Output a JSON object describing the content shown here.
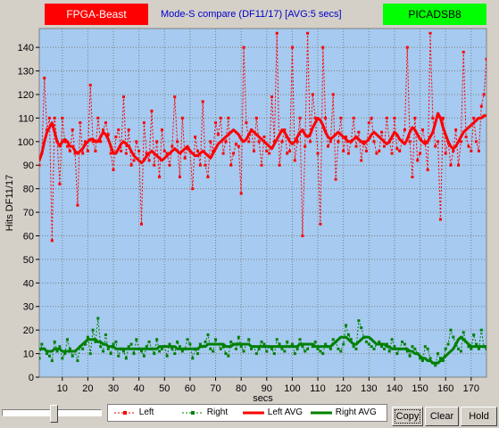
{
  "header": {
    "left_badge": "FPGA-Beast",
    "right_badge": "PICADSB8",
    "left_color": "#ff0000",
    "right_color": "#00ff00"
  },
  "chart_data": {
    "type": "line",
    "title": "Mode-S compare (DF11/17) [AVG:5 secs]",
    "xlabel": "secs",
    "ylabel": "Hits DF11/17",
    "xlim": [
      1,
      176
    ],
    "ylim": [
      0,
      148
    ],
    "x_ticks": [
      10,
      20,
      30,
      40,
      50,
      60,
      70,
      80,
      90,
      100,
      110,
      120,
      130,
      140,
      150,
      160,
      170
    ],
    "y_ticks": [
      0,
      10,
      20,
      30,
      40,
      50,
      60,
      70,
      80,
      90,
      100,
      110,
      120,
      130,
      140
    ],
    "grid": true,
    "background": "#a6caf0",
    "series": [
      {
        "name": "Left",
        "color": "#ff0000",
        "style": "dotted-markers",
        "values": [
          90,
          95,
          127,
          105,
          110,
          58,
          110,
          100,
          82,
          110,
          100,
          98,
          96,
          105,
          95,
          73,
          108,
          95,
          100,
          96,
          124,
          100,
          96,
          110,
          100,
          105,
          108,
          103,
          95,
          88,
          102,
          105,
          96,
          119,
          95,
          105,
          90,
          92,
          100,
          96,
          65,
          108,
          95,
          92,
          113,
          90,
          100,
          85,
          105,
          96,
          95,
          90,
          98,
          119,
          100,
          85,
          110,
          93,
          97,
          96,
          80,
          102,
          96,
          90,
          117,
          90,
          85,
          100,
          96,
          108,
          103,
          110,
          95,
          100,
          110,
          90,
          95,
          99,
          98,
          78,
          140,
          108,
          100,
          105,
          96,
          110,
          100,
          90,
          102,
          96,
          95,
          119,
          100,
          146,
          90,
          100,
          105,
          95,
          96,
          140,
          92,
          100,
          110,
          60,
          98,
          146,
          100,
          120,
          110,
          95,
          65,
          140,
          110,
          98,
          100,
          120,
          84,
          100,
          110,
          96,
          102,
          95,
          100,
          110,
          98,
          104,
          92,
          100,
          96,
          108,
          110,
          100,
          95,
          96,
          104,
          98,
          110,
          100,
          95,
          110,
          97,
          96,
          100,
          105,
          140,
          100,
          85,
          110,
          92,
          95,
          105,
          100,
          88,
          146,
          110,
          98,
          100,
          67,
          110,
          95,
          100,
          90,
          96,
          105,
          90,
          100,
          138,
          102,
          98,
          96,
          110,
          100,
          96,
          115,
          120,
          135
        ]
      },
      {
        "name": "Right",
        "color": "#008000",
        "style": "dotted-markers",
        "values": [
          8,
          14,
          12,
          10,
          9,
          7,
          15,
          11,
          13,
          8,
          10,
          16,
          12,
          9,
          11,
          7,
          13,
          12,
          14,
          17,
          10,
          20,
          15,
          25,
          13,
          11,
          18,
          12,
          10,
          14,
          15,
          9,
          12,
          11,
          8,
          13,
          14,
          10,
          16,
          12,
          11,
          9,
          13,
          15,
          12,
          10,
          16,
          11,
          12,
          13,
          9,
          14,
          12,
          10,
          15,
          13,
          11,
          12,
          16,
          14,
          8,
          12,
          10,
          14,
          13,
          15,
          18,
          12,
          11,
          16,
          14,
          12,
          13,
          10,
          9,
          15,
          14,
          12,
          17,
          13,
          11,
          14,
          16,
          12,
          13,
          10,
          12,
          15,
          14,
          11,
          13,
          12,
          10,
          16,
          14,
          12,
          11,
          15,
          13,
          14,
          10,
          12,
          16,
          13,
          11,
          12,
          14,
          13,
          15,
          12,
          11,
          10,
          14,
          13,
          12,
          16,
          15,
          12,
          11,
          14,
          22,
          18,
          16,
          13,
          12,
          24,
          21,
          17,
          15,
          14,
          13,
          12,
          14,
          15,
          13,
          12,
          14,
          11,
          16,
          13,
          10,
          12,
          15,
          14,
          11,
          9,
          13,
          12,
          10,
          8,
          7,
          13,
          12,
          8,
          6,
          5,
          10,
          8,
          7,
          12,
          14,
          20,
          17,
          14,
          12,
          11,
          19,
          15,
          13,
          12,
          18,
          14,
          12,
          20,
          13,
          12
        ]
      },
      {
        "name": "Left AVG",
        "color": "#ff0000",
        "style": "thick",
        "values": [
          92,
          95,
          100,
          104,
          106,
          108,
          104,
          100,
          98,
          100,
          101,
          100,
          98,
          98,
          96,
          95,
          96,
          97,
          99,
          100,
          101,
          101,
          100,
          100,
          102,
          104,
          103,
          101,
          98,
          95,
          95,
          97,
          99,
          100,
          99,
          98,
          96,
          94,
          93,
          92,
          91,
          92,
          94,
          95,
          96,
          95,
          94,
          93,
          92,
          93,
          94,
          95,
          96,
          97,
          96,
          95,
          96,
          97,
          98,
          96,
          95,
          94,
          94,
          95,
          96,
          95,
          94,
          93,
          95,
          97,
          99,
          100,
          101,
          102,
          103,
          104,
          105,
          104,
          103,
          101,
          100,
          101,
          103,
          105,
          104,
          103,
          102,
          101,
          100,
          99,
          98,
          97,
          99,
          101,
          103,
          105,
          104,
          102,
          100,
          99,
          100,
          102,
          104,
          105,
          103,
          102,
          103,
          106,
          108,
          110,
          109,
          107,
          104,
          102,
          101,
          102,
          103,
          104,
          103,
          102,
          101,
          100,
          100,
          101,
          102,
          101,
          100,
          99,
          100,
          101,
          103,
          104,
          103,
          102,
          101,
          100,
          99,
          100,
          102,
          104,
          103,
          101,
          100,
          99,
          101,
          104,
          106,
          105,
          103,
          101,
          100,
          99,
          100,
          102,
          104,
          108,
          112,
          110,
          106,
          103,
          100,
          98,
          97,
          98,
          100,
          102,
          104,
          105,
          106,
          107,
          108,
          109,
          110,
          110,
          111,
          111
        ]
      },
      {
        "name": "Right AVG",
        "color": "#008000",
        "style": "thick",
        "values": [
          12,
          12,
          12,
          11,
          11,
          11,
          12,
          12,
          12,
          11,
          11,
          11,
          11,
          11,
          11,
          12,
          13,
          14,
          15,
          16,
          16,
          16,
          16,
          15,
          15,
          14,
          14,
          13,
          13,
          13,
          12,
          12,
          12,
          12,
          12,
          12,
          12,
          12,
          12,
          12,
          12,
          12,
          12,
          12,
          12,
          12,
          12,
          13,
          13,
          13,
          13,
          13,
          13,
          13,
          12,
          12,
          12,
          12,
          12,
          12,
          12,
          12,
          12,
          13,
          13,
          13,
          14,
          14,
          14,
          14,
          14,
          14,
          14,
          13,
          13,
          13,
          14,
          14,
          14,
          14,
          14,
          14,
          14,
          13,
          13,
          13,
          13,
          13,
          13,
          13,
          13,
          13,
          13,
          13,
          13,
          13,
          13,
          13,
          13,
          13,
          13,
          13,
          14,
          14,
          14,
          14,
          14,
          14,
          13,
          13,
          13,
          13,
          13,
          13,
          13,
          14,
          15,
          16,
          17,
          17,
          17,
          16,
          15,
          14,
          14,
          15,
          16,
          17,
          17,
          17,
          16,
          15,
          14,
          14,
          14,
          14,
          13,
          13,
          12,
          12,
          12,
          12,
          12,
          12,
          12,
          11,
          11,
          10,
          10,
          9,
          8,
          8,
          7,
          7,
          6,
          6,
          6,
          7,
          8,
          9,
          10,
          11,
          12,
          14,
          16,
          17,
          16,
          15,
          14,
          13,
          13,
          13,
          13,
          13,
          13,
          13
        ]
      }
    ],
    "legend": {
      "placement": "bottom",
      "entries": [
        "Left",
        "Right",
        "Left AVG",
        "Right AVG"
      ]
    }
  },
  "controls": {
    "copy_label": "Copy",
    "clear_label": "Clear",
    "hold_label": "Hold"
  }
}
